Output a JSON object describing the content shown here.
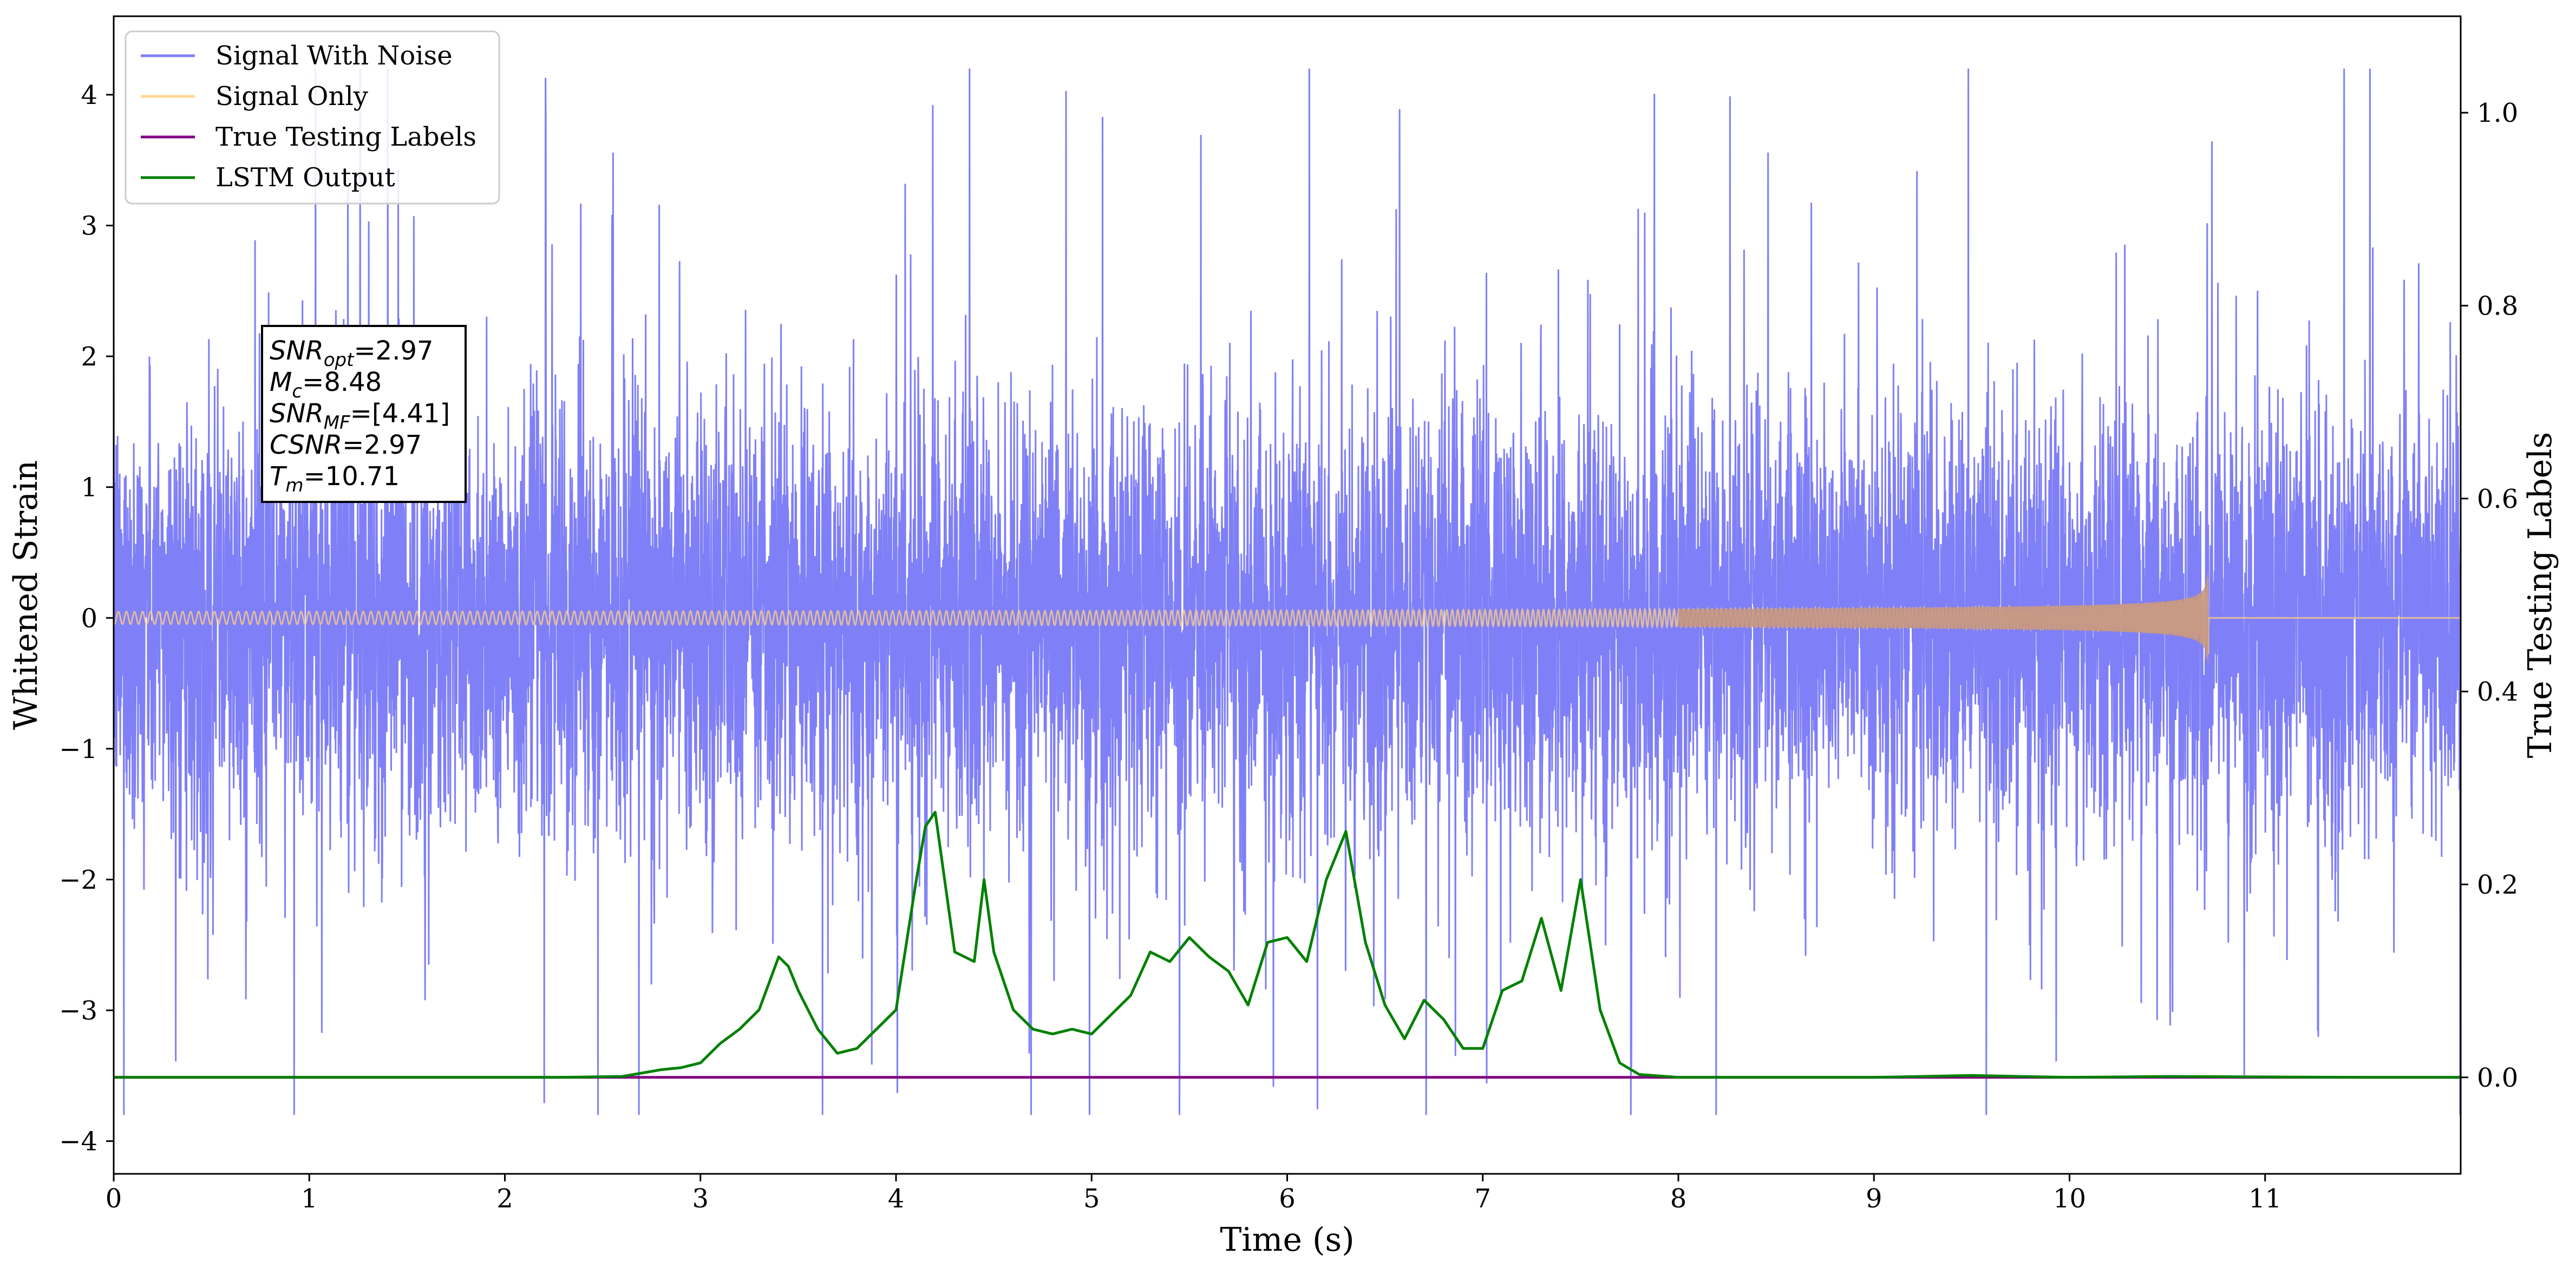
{
  "chart_data": {
    "type": "line",
    "xlabel": "Time (s)",
    "ylabel_left": "Whitened Strain",
    "ylabel_right": "True Testing Labels",
    "xlim": [
      0,
      12
    ],
    "ylim_left": [
      -4.25,
      4.6
    ],
    "ylim_right": [
      -0.1,
      1.1
    ],
    "x_ticks": [
      "0",
      "1",
      "2",
      "3",
      "4",
      "5",
      "6",
      "7",
      "8",
      "9",
      "10",
      "11"
    ],
    "y_left_ticks": [
      "−4",
      "−3",
      "−2",
      "−1",
      "0",
      "1",
      "2",
      "3",
      "4"
    ],
    "y_right_ticks": [
      "0.0",
      "0.2",
      "0.4",
      "0.6",
      "0.8",
      "1.0"
    ],
    "grid": false,
    "legend_position": "top-left",
    "series": [
      {
        "name": "Signal With Noise",
        "axis": "left",
        "color": "#7f7ff7",
        "description_values": {
          "x_range": [
            0,
            12
          ],
          "std": 0.95,
          "peak_max": 4.2,
          "peak_min": -3.8
        }
      },
      {
        "name": "Signal Only",
        "axis": "left",
        "color": "#ffcf80",
        "chirp": {
          "start": 0,
          "merger_time": 10.71,
          "peak_amplitude": 0.37,
          "tail_value": 0
        }
      },
      {
        "name": "True Testing Labels",
        "axis": "right",
        "color": "#800080",
        "x": [
          0,
          12
        ],
        "y": [
          0,
          0
        ]
      },
      {
        "name": "LSTM Output",
        "axis": "right",
        "color": "#008000",
        "x": [
          0,
          0.5,
          1.0,
          1.5,
          2.0,
          2.3,
          2.6,
          2.8,
          2.9,
          3.0,
          3.1,
          3.2,
          3.3,
          3.4,
          3.45,
          3.5,
          3.6,
          3.7,
          3.8,
          3.9,
          4.0,
          4.1,
          4.15,
          4.2,
          4.3,
          4.4,
          4.45,
          4.5,
          4.6,
          4.7,
          4.8,
          4.9,
          5.0,
          5.1,
          5.2,
          5.3,
          5.4,
          5.5,
          5.6,
          5.7,
          5.8,
          5.9,
          6.0,
          6.1,
          6.2,
          6.3,
          6.4,
          6.5,
          6.6,
          6.7,
          6.8,
          6.9,
          7.0,
          7.1,
          7.2,
          7.3,
          7.4,
          7.5,
          7.6,
          7.7,
          7.8,
          8.0,
          9.0,
          9.5,
          10.0,
          10.5,
          11.5,
          12.0
        ],
        "y": [
          0.0,
          0.0,
          0.0,
          0.0,
          0.0,
          0.0,
          0.001,
          0.008,
          0.01,
          0.015,
          0.035,
          0.05,
          0.07,
          0.125,
          0.115,
          0.09,
          0.05,
          0.025,
          0.03,
          0.05,
          0.07,
          0.2,
          0.26,
          0.275,
          0.13,
          0.12,
          0.205,
          0.13,
          0.07,
          0.05,
          0.045,
          0.05,
          0.045,
          0.065,
          0.085,
          0.13,
          0.12,
          0.145,
          0.125,
          0.11,
          0.075,
          0.14,
          0.145,
          0.12,
          0.205,
          0.255,
          0.14,
          0.075,
          0.04,
          0.08,
          0.06,
          0.03,
          0.03,
          0.09,
          0.1,
          0.165,
          0.09,
          0.205,
          0.07,
          0.015,
          0.003,
          0.0,
          0.0,
          0.002,
          0.0,
          0.001,
          0.0,
          0.0
        ]
      }
    ],
    "annotation": {
      "lines": [
        {
          "base": "SNR",
          "sub": "opt",
          "rest": "=2.97"
        },
        {
          "base": "M",
          "sub": "c",
          "rest": "=8.48"
        },
        {
          "base": "SNR",
          "sub": "MF",
          "rest": "=[4.41]"
        },
        {
          "base": "CSNR",
          "sub": "",
          "rest": "=2.97"
        },
        {
          "base": "T",
          "sub": "m",
          "rest": "=10.71"
        }
      ]
    }
  }
}
